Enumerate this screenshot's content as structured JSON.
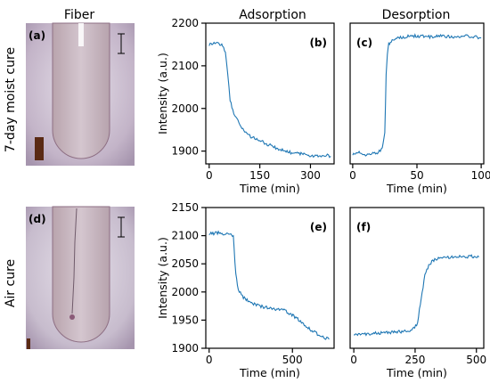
{
  "headers": {
    "fiber": "Fiber",
    "adsorption": "Adsorption",
    "desorption": "Desorption"
  },
  "rows": {
    "top": "7-day moist cure",
    "bottom": "Air cure"
  },
  "photos": [
    {
      "label": "(a)",
      "tint": "#c3b4c8",
      "crack": false
    },
    {
      "label": "(d)",
      "tint": "#c7bccd",
      "crack": true
    }
  ],
  "line_color": "#1f77b4",
  "chart_data": [
    {
      "type": "line",
      "panel": "(b)",
      "xlabel": "Time (min)",
      "ylabel": "Intensity (a.u.)",
      "xlim": [
        -10,
        370
      ],
      "ylim": [
        1870,
        2200
      ],
      "xticks": [
        0,
        150,
        300
      ],
      "yticks": [
        1900,
        2000,
        2100,
        2200
      ],
      "x": [
        0,
        20,
        40,
        48,
        55,
        62,
        70,
        85,
        100,
        120,
        150,
        175,
        200,
        225,
        250,
        275,
        300,
        320,
        340,
        350,
        360
      ],
      "y": [
        2150,
        2155,
        2148,
        2130,
        2080,
        2020,
        1995,
        1970,
        1950,
        1935,
        1925,
        1915,
        1907,
        1900,
        1895,
        1893,
        1890,
        1888,
        1887,
        1890,
        1888
      ]
    },
    {
      "type": "line",
      "panel": "(c)",
      "xlabel": "Time (min)",
      "ylabel": "",
      "xlim": [
        -2,
        102
      ],
      "ylim": [
        1870,
        2200
      ],
      "xticks": [
        0,
        50,
        100
      ],
      "yticks": [],
      "x": [
        0,
        5,
        10,
        15,
        20,
        23,
        25,
        26,
        27,
        28,
        30,
        35,
        40,
        50,
        60,
        70,
        80,
        90,
        100
      ],
      "y": [
        1893,
        1898,
        1890,
        1895,
        1897,
        1905,
        1940,
        2080,
        2130,
        2150,
        2158,
        2165,
        2168,
        2170,
        2168,
        2170,
        2167,
        2170,
        2165
      ]
    },
    {
      "type": "line",
      "panel": "(e)",
      "xlabel": "Time (min)",
      "ylabel": "Intensity (a.u.)",
      "xlim": [
        -20,
        750
      ],
      "ylim": [
        1900,
        2150
      ],
      "xticks": [
        0,
        500
      ],
      "yticks": [
        1900,
        1950,
        2000,
        2050,
        2100,
        2150
      ],
      "x": [
        0,
        50,
        100,
        130,
        145,
        160,
        175,
        200,
        250,
        300,
        350,
        400,
        450,
        480,
        520,
        560,
        600,
        650,
        700,
        720
      ],
      "y": [
        2103,
        2105,
        2103,
        2102,
        2100,
        2030,
        2005,
        1992,
        1980,
        1975,
        1972,
        1970,
        1968,
        1962,
        1955,
        1945,
        1935,
        1925,
        1918,
        1916
      ]
    },
    {
      "type": "line",
      "panel": "(f)",
      "xlabel": "Time (min)",
      "ylabel": "",
      "xlim": [
        -15,
        530
      ],
      "ylim": [
        1900,
        2150
      ],
      "xticks": [
        0,
        250,
        500
      ],
      "yticks": [],
      "x": [
        0,
        50,
        100,
        150,
        200,
        240,
        260,
        275,
        290,
        310,
        330,
        360,
        400,
        440,
        480,
        510
      ],
      "y": [
        1925,
        1925,
        1927,
        1928,
        1930,
        1933,
        1945,
        1990,
        2030,
        2050,
        2058,
        2060,
        2062,
        2063,
        2063,
        2062
      ]
    }
  ]
}
